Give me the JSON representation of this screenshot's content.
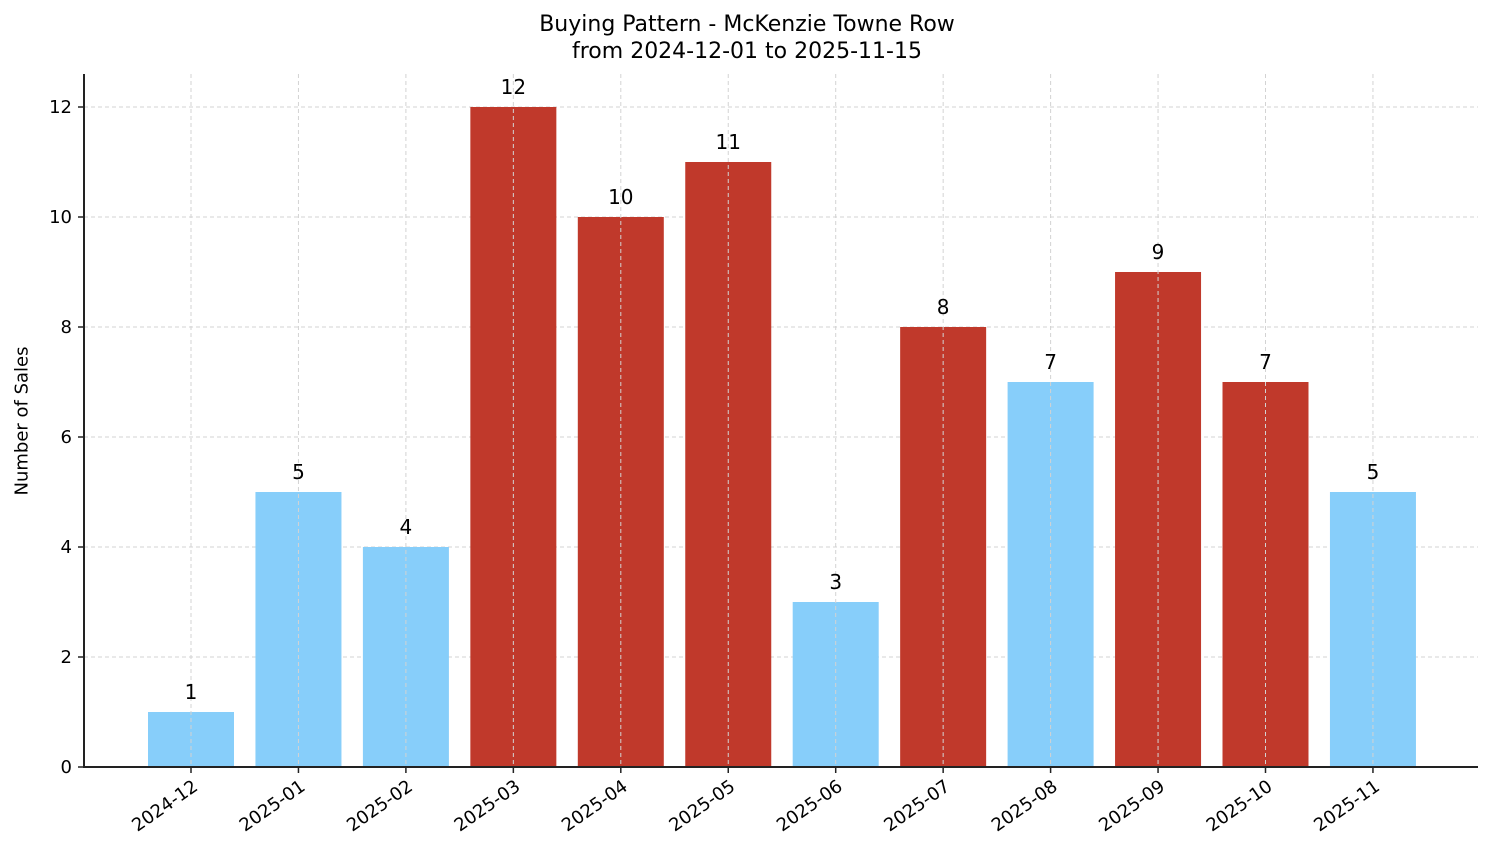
{
  "chart_data": {
    "type": "bar",
    "title": "Buying Pattern - McKenzie Towne Row",
    "subtitle": "from 2024-12-01 to 2025-11-15",
    "xlabel": "",
    "ylabel": "Number of Sales",
    "categories": [
      "2024-12",
      "2025-01",
      "2025-02",
      "2025-03",
      "2025-04",
      "2025-05",
      "2025-06",
      "2025-07",
      "2025-08",
      "2025-09",
      "2025-10",
      "2025-11"
    ],
    "values": [
      1,
      5,
      4,
      12,
      10,
      11,
      3,
      8,
      7,
      9,
      7,
      5
    ],
    "bar_colors": [
      "#87CEFA",
      "#87CEFA",
      "#87CEFA",
      "#C0392B",
      "#C0392B",
      "#C0392B",
      "#87CEFA",
      "#C0392B",
      "#87CEFA",
      "#C0392B",
      "#C0392B",
      "#87CEFA"
    ],
    "data_labels": [
      "1",
      "5",
      "4",
      "12",
      "10",
      "11",
      "3",
      "8",
      "7",
      "9",
      "7",
      "5"
    ],
    "yticks": [
      0,
      2,
      4,
      6,
      8,
      10,
      12
    ],
    "ylim": [
      0,
      12.6
    ],
    "grid": true,
    "legend": null
  },
  "colors": {
    "high": "#C0392B",
    "low": "#87CEFA",
    "grid": "#d3d3d3",
    "axis": "#222222"
  }
}
